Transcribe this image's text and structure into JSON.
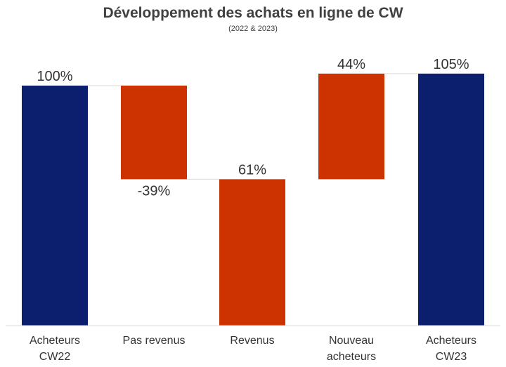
{
  "chart_data": {
    "type": "bar",
    "subtype": "waterfall",
    "title": "Développement des achats en ligne de CW",
    "subtitle": "(2022 & 2023)",
    "ylim": [
      0,
      110
    ],
    "grid": false,
    "legend": "none",
    "colors": {
      "total": "#0b1f6e",
      "change": "#cc3300",
      "connector": "#d9d9d9",
      "axis": "#d9d9d9"
    },
    "bars": [
      {
        "label_lines": [
          "Acheteurs",
          "CW22"
        ],
        "kind": "total",
        "start": 0,
        "end": 100,
        "label": "100%",
        "label_pos": "above"
      },
      {
        "label_lines": [
          "Pas revenus"
        ],
        "kind": "change",
        "start": 100,
        "end": 61,
        "label": "-39%",
        "label_pos": "below"
      },
      {
        "label_lines": [
          "Revenus"
        ],
        "kind": "change",
        "start": 61,
        "end": 0,
        "label": "61%",
        "label_pos": "above"
      },
      {
        "label_lines": [
          "Nouveau",
          "acheteurs"
        ],
        "kind": "change",
        "start": 61,
        "end": 105,
        "label": "44%",
        "label_pos": "above"
      },
      {
        "label_lines": [
          "Acheteurs",
          "CW23"
        ],
        "kind": "total",
        "start": 0,
        "end": 105,
        "label": "105%",
        "label_pos": "above"
      }
    ]
  }
}
